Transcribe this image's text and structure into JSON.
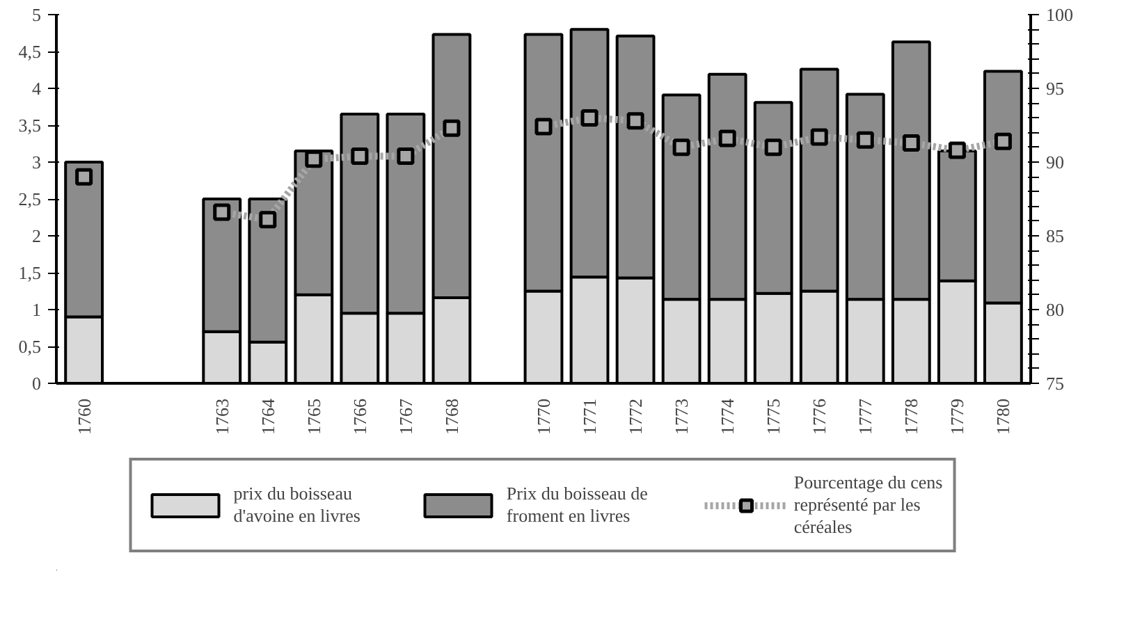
{
  "chart_data": {
    "type": "bar",
    "stacked": true,
    "categories": [
      "1760",
      null,
      null,
      "1763",
      "1764",
      "1765",
      "1766",
      "1767",
      "1768",
      null,
      "1770",
      "1771",
      "1772",
      "1773",
      "1774",
      "1775",
      "1776",
      "1777",
      "1778",
      "1779",
      "1780"
    ],
    "series": [
      {
        "name": "prix du boisseau d'avoine en livres",
        "color": "#d9d9d9",
        "values": [
          0.9,
          null,
          null,
          0.7,
          0.56,
          1.2,
          0.95,
          0.95,
          1.16,
          null,
          1.25,
          1.44,
          1.43,
          1.14,
          1.14,
          1.22,
          1.25,
          1.14,
          1.14,
          1.39,
          1.09
        ]
      },
      {
        "name": "Prix du boisseau de froment en livres",
        "color": "#8c8c8c",
        "values": [
          2.1,
          null,
          null,
          1.8,
          1.94,
          1.95,
          2.7,
          2.7,
          3.57,
          null,
          3.48,
          3.36,
          3.28,
          2.77,
          3.05,
          2.59,
          3.01,
          2.78,
          3.49,
          1.76,
          3.14
        ]
      },
      {
        "name": "Pourcentage du cens représenté par les céréales",
        "type": "line",
        "axis": "y2",
        "color": "#a6a6a6",
        "marker": "square",
        "line_style": "dotted",
        "values": [
          89.0,
          null,
          null,
          86.6,
          86.1,
          90.2,
          90.4,
          90.4,
          92.3,
          null,
          92.4,
          93.0,
          92.8,
          91.0,
          91.6,
          91.0,
          91.7,
          91.5,
          91.3,
          90.8,
          91.4
        ]
      }
    ],
    "ylim": [
      0,
      5
    ],
    "yticks": [
      0,
      {
        "value": 0.5,
        "label": "0,5"
      },
      1,
      {
        "value": 1.5,
        "label": "1,5"
      },
      2,
      {
        "value": 2.5,
        "label": "2,5"
      },
      3,
      {
        "value": 3.5,
        "label": "3,5"
      },
      4,
      {
        "value": 4.5,
        "label": "4,5"
      },
      5
    ],
    "y2lim": [
      75,
      100
    ],
    "y2ticks": [
      75,
      {
        "value": 76,
        "label": null
      },
      {
        "value": 77,
        "label": null
      },
      {
        "value": 78,
        "label": null
      },
      {
        "value": 79,
        "label": null
      },
      80,
      {
        "value": 81,
        "label": null
      },
      {
        "value": 82,
        "label": null
      },
      {
        "value": 83,
        "label": null
      },
      {
        "value": 84,
        "label": null
      },
      85,
      {
        "value": 86,
        "label": null
      },
      {
        "value": 87,
        "label": null
      },
      {
        "value": 88,
        "label": null
      },
      {
        "value": 89,
        "label": null
      },
      90,
      {
        "value": 91,
        "label": null
      },
      {
        "value": 92,
        "label": null
      },
      {
        "value": 93,
        "label": null
      },
      {
        "value": 94,
        "label": null
      },
      95,
      {
        "value": 96,
        "label": null
      },
      {
        "value": 97,
        "label": null
      },
      {
        "value": 98,
        "label": null
      },
      {
        "value": 99,
        "label": null
      },
      100
    ],
    "grid": false,
    "legend": "bottom"
  }
}
